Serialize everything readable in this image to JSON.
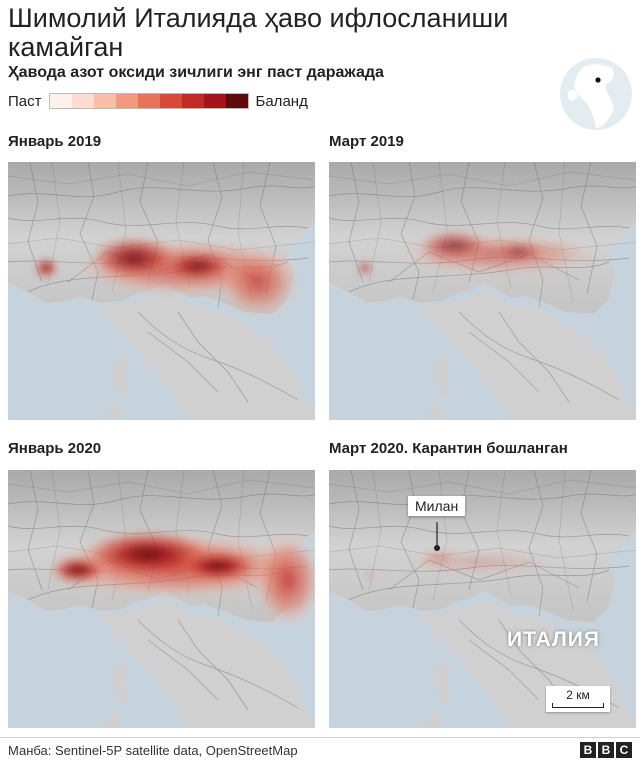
{
  "header": {
    "title": "Шимолий Италияда ҳаво ифлосланиши камайган",
    "subtitle": "Ҳавода азот оксиди зичлиги энг паст даражада"
  },
  "legend": {
    "low_label": "Паст",
    "high_label": "Баланд",
    "scale_colors": [
      "#fdf1ec",
      "#fcdcd0",
      "#f9bda8",
      "#f29a80",
      "#e6735a",
      "#d54a39",
      "#c22a25",
      "#a3151a",
      "#5e0b0e"
    ]
  },
  "panels": [
    {
      "title": "Январь 2019",
      "intensity": 0.85
    },
    {
      "title": "Март 2019",
      "intensity": 0.55
    },
    {
      "title": "Январь 2020",
      "intensity": 1.0
    },
    {
      "title": "Март 2020. Карантин бошланган",
      "intensity": 0.15
    }
  ],
  "map_labels": {
    "city": "Милан",
    "country": "ИТАЛИЯ",
    "scale": "2 км"
  },
  "footer": {
    "source": "Манба: Sentinel-5P satellite data, OpenStreetMap",
    "logo_letters": [
      "B",
      "B",
      "C"
    ]
  }
}
